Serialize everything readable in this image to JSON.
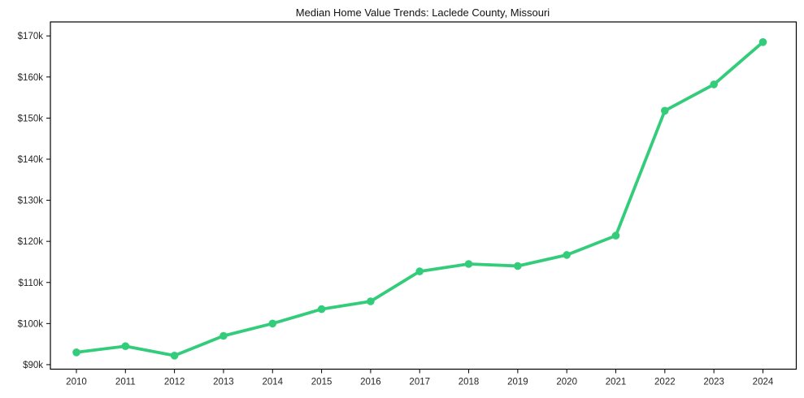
{
  "chart_data": {
    "type": "line",
    "title": "Median Home Value Trends: Laclede County, Missouri",
    "x": [
      2010,
      2011,
      2012,
      2013,
      2014,
      2015,
      2016,
      2017,
      2018,
      2019,
      2020,
      2021,
      2022,
      2023,
      2024
    ],
    "values": [
      93000,
      94500,
      92200,
      97000,
      100000,
      103500,
      105400,
      112700,
      114500,
      114000,
      116700,
      121400,
      151800,
      158200,
      168500
    ],
    "xlabel": "",
    "ylabel": "",
    "xtick_labels": [
      "2010",
      "2011",
      "2012",
      "2013",
      "2014",
      "2015",
      "2016",
      "2017",
      "2018",
      "2019",
      "2020",
      "2021",
      "2022",
      "2023",
      "2024"
    ],
    "ytick_labels": [
      "$90k",
      "$100k",
      "$110k",
      "$120k",
      "$130k",
      "$140k",
      "$150k",
      "$160k",
      "$170k"
    ],
    "ytick_values": [
      90000,
      100000,
      110000,
      120000,
      130000,
      140000,
      150000,
      160000,
      170000
    ],
    "xlim": [
      2009.47,
      2024.68
    ],
    "ylim": [
      88900,
      173400
    ],
    "grid": false,
    "legend": false,
    "line_color": "#33cc7a",
    "marker": "circle",
    "marker_radius": 4.8,
    "line_width": 3.8,
    "text_color": "#262626",
    "spine_color": "#000000",
    "background": "#ffffff"
  }
}
